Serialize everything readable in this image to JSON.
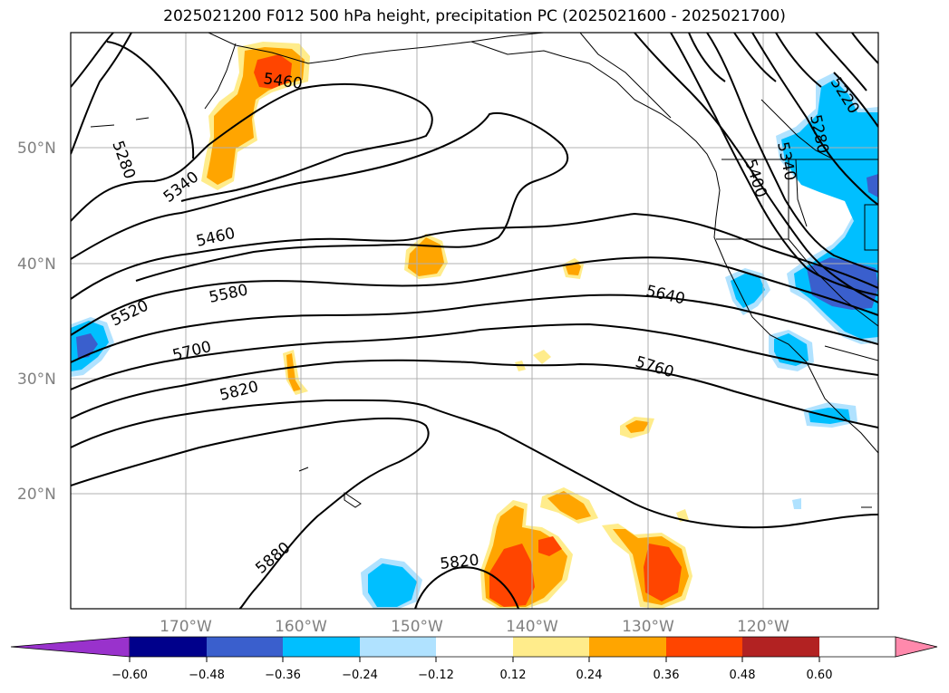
{
  "title": "2025021200 F012 500 hPa height, precipitation PC (2025021600 - 2025021700)",
  "map": {
    "lat_labels": [
      "50°N",
      "40°N",
      "30°N",
      "20°N"
    ],
    "lon_labels": [
      "170°W",
      "160°W",
      "150°W",
      "140°W",
      "130°W",
      "120°W"
    ],
    "grid": true,
    "contour_labels": [
      "5460",
      "5280",
      "5340",
      "5460",
      "5520",
      "5580",
      "5700",
      "5820",
      "5880",
      "5820",
      "5640",
      "5760",
      "5220",
      "5280",
      "5340",
      "5400"
    ],
    "colors": {
      "line": "#000000",
      "grid": "#b0b0b0"
    }
  },
  "colorbar": {
    "tick_labels": [
      "−0.60",
      "−0.48",
      "−0.36",
      "−0.24",
      "−0.12",
      "0.12",
      "0.24",
      "0.36",
      "0.48",
      "0.60"
    ],
    "colors": [
      "#9932cc",
      "#00008b",
      "#3a5fcd",
      "#00bfff",
      "#b0e2ff",
      "#ffffff",
      "#ffec8b",
      "#ffa500",
      "#ff4500",
      "#b22222",
      "#ff89ac"
    ]
  }
}
